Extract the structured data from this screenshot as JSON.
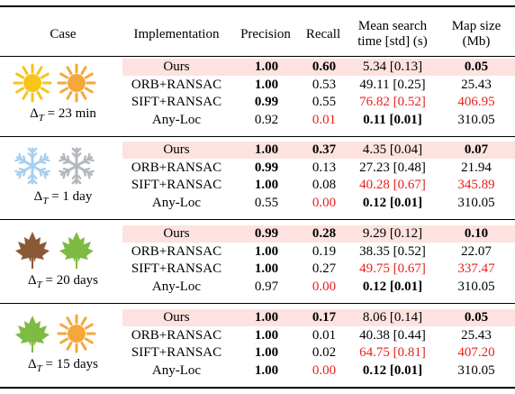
{
  "header": {
    "case": "Case",
    "implementation": "Implementation",
    "precision": "Precision",
    "recall": "Recall",
    "time_line1": "Mean search",
    "time_line2": "time [std] (s)",
    "map_line1": "Map size",
    "map_line2": "(Mb)"
  },
  "colors": {
    "highlight_row": "#fde2df",
    "worst_value": "#e8201a",
    "sun": "#f7c417",
    "snowflake": "#a7d0ee",
    "brown_leaf": "#8a5a36",
    "green_leaf": "#7dbb42"
  },
  "groups": [
    {
      "delta_symbol": "Δ",
      "delta_sub": "T",
      "delta_value": "= 23 min",
      "icons": [
        "sun-icon",
        "sun-orange-icon"
      ],
      "rows": [
        {
          "impl": "Ours",
          "precision": "1.00",
          "recall": "0.60",
          "time": "5.34 [0.13]",
          "map": "0.05",
          "precision_bold": true,
          "recall_bold": true,
          "time_bold": false,
          "map_bold": true,
          "recall_red": false,
          "time_red": false,
          "map_red": false
        },
        {
          "impl": "ORB+RANSAC",
          "precision": "1.00",
          "recall": "0.53",
          "time": "49.11 [0.25]",
          "map": "25.43",
          "precision_bold": true,
          "recall_bold": false,
          "time_bold": false,
          "map_bold": false,
          "recall_red": false,
          "time_red": false,
          "map_red": false
        },
        {
          "impl": "SIFT+RANSAC",
          "precision": "0.99",
          "recall": "0.55",
          "time": "76.82 [0.52]",
          "map": "406.95",
          "precision_bold": true,
          "recall_bold": false,
          "time_bold": false,
          "map_bold": false,
          "recall_red": false,
          "time_red": true,
          "map_red": true
        },
        {
          "impl": "Any-Loc",
          "precision": "0.92",
          "recall": "0.01",
          "time": "0.11 [0.01]",
          "map": "310.05",
          "precision_bold": false,
          "recall_bold": false,
          "time_bold": true,
          "map_bold": false,
          "recall_red": true,
          "time_red": false,
          "map_red": false
        }
      ]
    },
    {
      "delta_symbol": "Δ",
      "delta_sub": "T",
      "delta_value": "= 1 day",
      "icons": [
        "snowflake-icon",
        "snowflake-gray-icon"
      ],
      "rows": [
        {
          "impl": "Ours",
          "precision": "1.00",
          "recall": "0.37",
          "time": "4.35 [0.04]",
          "map": "0.07",
          "precision_bold": true,
          "recall_bold": true,
          "time_bold": false,
          "map_bold": true,
          "recall_red": false,
          "time_red": false,
          "map_red": false
        },
        {
          "impl": "ORB+RANSAC",
          "precision": "0.99",
          "recall": "0.13",
          "time": "27.23 [0.48]",
          "map": "21.94",
          "precision_bold": true,
          "recall_bold": false,
          "time_bold": false,
          "map_bold": false,
          "recall_red": false,
          "time_red": false,
          "map_red": false
        },
        {
          "impl": "SIFT+RANSAC",
          "precision": "1.00",
          "recall": "0.08",
          "time": "40.28 [0.67]",
          "map": "345.89",
          "precision_bold": true,
          "recall_bold": false,
          "time_bold": false,
          "map_bold": false,
          "recall_red": false,
          "time_red": true,
          "map_red": true
        },
        {
          "impl": "Any-Loc",
          "precision": "0.55",
          "recall": "0.00",
          "time": "0.12 [0.01]",
          "map": "310.05",
          "precision_bold": false,
          "recall_bold": false,
          "time_bold": true,
          "map_bold": false,
          "recall_red": true,
          "time_red": false,
          "map_red": false
        }
      ]
    },
    {
      "delta_symbol": "Δ",
      "delta_sub": "T",
      "delta_value": "= 20 days",
      "icons": [
        "brown-leaf-icon",
        "green-leaf-icon"
      ],
      "rows": [
        {
          "impl": "Ours",
          "precision": "0.99",
          "recall": "0.28",
          "time": "9.29 [0.12]",
          "map": "0.10",
          "precision_bold": true,
          "recall_bold": true,
          "time_bold": false,
          "map_bold": true,
          "recall_red": false,
          "time_red": false,
          "map_red": false
        },
        {
          "impl": "ORB+RANSAC",
          "precision": "1.00",
          "recall": "0.19",
          "time": "38.35 [0.52]",
          "map": "22.07",
          "precision_bold": true,
          "recall_bold": false,
          "time_bold": false,
          "map_bold": false,
          "recall_red": false,
          "time_red": false,
          "map_red": false
        },
        {
          "impl": "SIFT+RANSAC",
          "precision": "1.00",
          "recall": "0.27",
          "time": "49.75 [0.67]",
          "map": "337.47",
          "precision_bold": true,
          "recall_bold": false,
          "time_bold": false,
          "map_bold": false,
          "recall_red": false,
          "time_red": true,
          "map_red": true
        },
        {
          "impl": "Any-Loc",
          "precision": "0.97",
          "recall": "0.00",
          "time": "0.12 [0.01]",
          "map": "310.05",
          "precision_bold": false,
          "recall_bold": false,
          "time_bold": true,
          "map_bold": false,
          "recall_red": true,
          "time_red": false,
          "map_red": false
        }
      ]
    },
    {
      "delta_symbol": "Δ",
      "delta_sub": "T",
      "delta_value": "= 15 days",
      "icons": [
        "green-leaf-icon",
        "sun-orange-icon"
      ],
      "rows": [
        {
          "impl": "Ours",
          "precision": "1.00",
          "recall": "0.17",
          "time": "8.06 [0.14]",
          "map": "0.05",
          "precision_bold": true,
          "recall_bold": true,
          "time_bold": false,
          "map_bold": true,
          "recall_red": false,
          "time_red": false,
          "map_red": false
        },
        {
          "impl": "ORB+RANSAC",
          "precision": "1.00",
          "recall": "0.01",
          "time": "40.38 [0.44]",
          "map": "25.43",
          "precision_bold": true,
          "recall_bold": false,
          "time_bold": false,
          "map_bold": false,
          "recall_red": false,
          "time_red": false,
          "map_red": false
        },
        {
          "impl": "SIFT+RANSAC",
          "precision": "1.00",
          "recall": "0.02",
          "time": "64.75 [0.81]",
          "map": "407.20",
          "precision_bold": true,
          "recall_bold": false,
          "time_bold": false,
          "map_bold": false,
          "recall_red": false,
          "time_red": true,
          "map_red": true
        },
        {
          "impl": "Any-Loc",
          "precision": "1.00",
          "recall": "0.00",
          "time": "0.12 [0.01]",
          "map": "310.05",
          "precision_bold": true,
          "recall_bold": false,
          "time_bold": true,
          "map_bold": false,
          "recall_red": true,
          "time_red": false,
          "map_red": false
        }
      ]
    }
  ]
}
